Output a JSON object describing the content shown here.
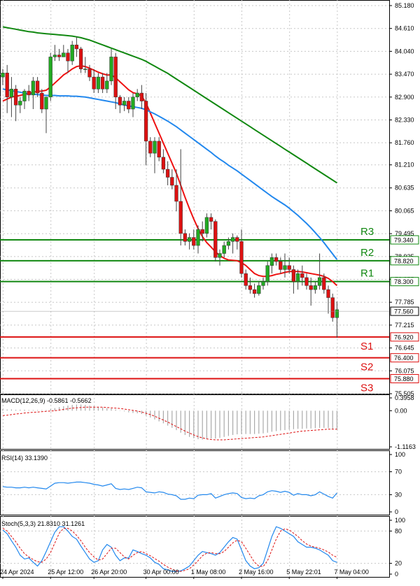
{
  "chart_data": [
    {
      "type": "candlestick",
      "panel": "price",
      "ylim": [
        75.505,
        85.18
      ],
      "price_ticks": [
        "85.180",
        "84.610",
        "84.040",
        "83.470",
        "82.900",
        "82.330",
        "81.760",
        "81.210",
        "80.635",
        "80.065",
        "79.495",
        "78.925",
        "78.355",
        "77.785",
        "77.215",
        "76.645",
        "76.075",
        "75.505"
      ],
      "current_price": {
        "value": 77.56,
        "label": "77.560"
      },
      "support_resistance": [
        {
          "name": "R3",
          "value": 79.34,
          "label": "79.340",
          "kind": "resistance"
        },
        {
          "name": "R2",
          "value": 78.82,
          "label": "78.820",
          "kind": "resistance"
        },
        {
          "name": "R1",
          "value": 78.3,
          "label": "78.300",
          "kind": "resistance"
        },
        {
          "name": "S1",
          "value": 76.92,
          "label": "76.920",
          "kind": "support"
        },
        {
          "name": "S2",
          "value": 76.4,
          "label": "76.400",
          "kind": "support"
        },
        {
          "name": "S3",
          "value": 75.88,
          "label": "75.880",
          "kind": "support"
        }
      ],
      "x_labels": [
        "24 Apr 2024",
        "25 Apr 12:00",
        "26 Apr 20:00",
        "30 Apr 00:00",
        "1 May 08:00",
        "2 May 16:00",
        "5 May 22:01",
        "7 May 04:00"
      ],
      "x_label_bars": [
        0,
        11,
        21,
        33,
        44,
        55,
        66,
        77
      ],
      "candles": [
        [
          83.4,
          83.6,
          83.2,
          83.5
        ],
        [
          83.5,
          83.7,
          82.5,
          82.9
        ],
        [
          82.9,
          83.4,
          82.4,
          83.1
        ],
        [
          83.1,
          83.2,
          82.3,
          82.7
        ],
        [
          82.7,
          82.9,
          82.5,
          82.8
        ],
        [
          82.8,
          83.1,
          82.6,
          83.05
        ],
        [
          83.05,
          83.2,
          82.8,
          82.95
        ],
        [
          82.95,
          83.4,
          82.6,
          83.3
        ],
        [
          83.3,
          83.4,
          82.9,
          83.0
        ],
        [
          83.0,
          83.1,
          82.5,
          82.6
        ],
        [
          82.6,
          82.9,
          82.0,
          82.9
        ],
        [
          82.9,
          84.0,
          82.8,
          83.9
        ],
        [
          83.9,
          84.2,
          83.8,
          83.95
        ],
        [
          83.95,
          84.1,
          83.8,
          83.9
        ],
        [
          83.9,
          84.2,
          83.9,
          84.0
        ],
        [
          84.0,
          84.1,
          83.5,
          83.8
        ],
        [
          83.8,
          84.3,
          83.7,
          84.2
        ],
        [
          84.2,
          84.4,
          83.9,
          84.1
        ],
        [
          84.1,
          84.15,
          83.5,
          83.6
        ],
        [
          83.6,
          83.9,
          83.5,
          83.6
        ],
        [
          83.6,
          83.7,
          83.3,
          83.4
        ],
        [
          83.4,
          83.6,
          83.0,
          83.1
        ],
        [
          83.1,
          83.5,
          83.0,
          83.4
        ],
        [
          83.4,
          83.5,
          83.0,
          83.1
        ],
        [
          83.1,
          83.5,
          83.0,
          83.3
        ],
        [
          83.3,
          84.1,
          83.2,
          83.9
        ],
        [
          83.9,
          84.0,
          82.6,
          82.9
        ],
        [
          82.9,
          82.95,
          82.5,
          82.7
        ],
        [
          82.7,
          82.9,
          82.55,
          82.8
        ],
        [
          82.8,
          82.9,
          82.5,
          82.6
        ],
        [
          82.6,
          83.0,
          82.4,
          82.9
        ],
        [
          82.9,
          83.1,
          82.8,
          83.0
        ],
        [
          83.0,
          83.2,
          82.6,
          82.8
        ],
        [
          82.8,
          83.0,
          81.2,
          81.8
        ],
        [
          81.8,
          81.9,
          81.4,
          81.5
        ],
        [
          81.5,
          81.9,
          81.0,
          81.8
        ],
        [
          81.8,
          81.9,
          81.3,
          81.4
        ],
        [
          81.4,
          81.6,
          81.0,
          81.1
        ],
        [
          81.1,
          81.3,
          80.7,
          80.9
        ],
        [
          80.9,
          81.1,
          80.6,
          80.7
        ],
        [
          80.7,
          81.1,
          80.05,
          80.3
        ],
        [
          80.3,
          81.6,
          79.2,
          79.5
        ],
        [
          79.5,
          79.6,
          79.2,
          79.3
        ],
        [
          79.3,
          79.5,
          79.1,
          79.4
        ],
        [
          79.4,
          79.6,
          79.1,
          79.2
        ],
        [
          79.2,
          79.7,
          79.0,
          79.6
        ],
        [
          79.6,
          79.8,
          79.3,
          79.5
        ],
        [
          79.5,
          80.0,
          79.4,
          79.9
        ],
        [
          79.9,
          80.0,
          79.6,
          79.8
        ],
        [
          79.8,
          79.85,
          78.8,
          78.9
        ],
        [
          78.9,
          79.1,
          78.7,
          79.0
        ],
        [
          79.0,
          79.3,
          78.9,
          79.2
        ],
        [
          79.2,
          79.4,
          79.1,
          79.3
        ],
        [
          79.3,
          79.5,
          79.0,
          79.4
        ],
        [
          79.4,
          79.45,
          79.1,
          79.3
        ],
        [
          79.3,
          79.6,
          78.4,
          78.5
        ],
        [
          78.5,
          78.6,
          78.1,
          78.2
        ],
        [
          78.2,
          78.4,
          78.0,
          78.1
        ],
        [
          78.1,
          78.25,
          77.9,
          78.0
        ],
        [
          78.0,
          78.3,
          77.95,
          78.2
        ],
        [
          78.2,
          78.4,
          78.1,
          78.3
        ],
        [
          78.3,
          78.8,
          78.2,
          78.7
        ],
        [
          78.7,
          79.0,
          78.5,
          78.9
        ],
        [
          78.9,
          79.0,
          78.7,
          78.8
        ],
        [
          78.8,
          78.9,
          78.5,
          78.6
        ],
        [
          78.6,
          79.0,
          78.4,
          78.7
        ],
        [
          78.7,
          78.9,
          78.5,
          78.6
        ],
        [
          78.6,
          78.7,
          78.0,
          78.3
        ],
        [
          78.3,
          78.6,
          78.1,
          78.5
        ],
        [
          78.5,
          78.7,
          78.2,
          78.4
        ],
        [
          78.4,
          78.5,
          78.1,
          78.2
        ],
        [
          78.2,
          78.4,
          77.7,
          78.1
        ],
        [
          78.1,
          78.3,
          78.0,
          78.2
        ],
        [
          78.2,
          79.0,
          78.1,
          78.4
        ],
        [
          78.4,
          78.5,
          78.0,
          78.1
        ],
        [
          78.1,
          78.2,
          77.5,
          77.9
        ],
        [
          77.9,
          78.0,
          77.3,
          77.4
        ],
        [
          77.4,
          77.8,
          76.9,
          77.6
        ]
      ],
      "series": [
        {
          "name": "",
          "color": "#ee1111",
          "values": [
            82.8,
            82.85,
            82.9,
            82.92,
            82.94,
            82.97,
            82.99,
            83.02,
            83.04,
            83.05,
            83.07,
            83.15,
            83.25,
            83.35,
            83.45,
            83.52,
            83.6,
            83.66,
            83.68,
            83.66,
            83.62,
            83.57,
            83.52,
            83.48,
            83.45,
            83.45,
            83.38,
            83.28,
            83.18,
            83.08,
            83.01,
            82.98,
            82.93,
            82.75,
            82.5,
            82.25,
            82.0,
            81.75,
            81.5,
            81.25,
            81.0,
            80.7,
            80.4,
            80.12,
            79.86,
            79.62,
            79.42,
            79.27,
            79.16,
            79.04,
            78.95,
            78.88,
            78.84,
            78.83,
            78.82,
            78.77,
            78.7,
            78.6,
            78.5,
            78.45,
            78.43,
            78.43,
            78.45,
            78.48,
            78.5,
            78.53,
            78.55,
            78.55,
            78.55,
            78.54,
            78.52,
            78.5,
            78.48,
            78.46,
            78.43,
            78.38,
            78.3,
            78.2
          ]
        },
        {
          "name": "",
          "color": "#2288ee",
          "values": [
            83.1,
            83.08,
            83.06,
            83.04,
            83.02,
            83.0,
            82.98,
            82.97,
            82.96,
            82.95,
            82.94,
            82.94,
            82.94,
            82.93,
            82.93,
            82.93,
            82.92,
            82.92,
            82.91,
            82.9,
            82.88,
            82.86,
            82.84,
            82.82,
            82.8,
            82.78,
            82.76,
            82.73,
            82.7,
            82.68,
            82.66,
            82.64,
            82.62,
            82.58,
            82.53,
            82.48,
            82.42,
            82.36,
            82.3,
            82.23,
            82.16,
            82.08,
            82.0,
            81.92,
            81.84,
            81.76,
            81.68,
            81.6,
            81.52,
            81.43,
            81.35,
            81.28,
            81.2,
            81.13,
            81.06,
            80.98,
            80.9,
            80.82,
            80.74,
            80.66,
            80.58,
            80.5,
            80.42,
            80.35,
            80.28,
            80.21,
            80.13,
            80.04,
            79.95,
            79.85,
            79.75,
            79.64,
            79.52,
            79.4,
            79.27,
            79.13,
            78.99,
            78.85
          ]
        },
        {
          "name": "",
          "color": "#118811",
          "values": [
            84.65,
            84.63,
            84.61,
            84.59,
            84.57,
            84.55,
            84.53,
            84.52,
            84.5,
            84.49,
            84.48,
            84.47,
            84.46,
            84.45,
            84.44,
            84.43,
            84.42,
            84.4,
            84.38,
            84.35,
            84.32,
            84.28,
            84.24,
            84.2,
            84.16,
            84.12,
            84.08,
            84.04,
            84.0,
            83.96,
            83.92,
            83.88,
            83.84,
            83.79,
            83.73,
            83.67,
            83.61,
            83.55,
            83.49,
            83.42,
            83.35,
            83.28,
            83.21,
            83.14,
            83.07,
            83.0,
            82.93,
            82.86,
            82.79,
            82.72,
            82.65,
            82.58,
            82.51,
            82.44,
            82.37,
            82.3,
            82.23,
            82.16,
            82.09,
            82.02,
            81.95,
            81.88,
            81.81,
            81.74,
            81.67,
            81.6,
            81.53,
            81.46,
            81.39,
            81.32,
            81.25,
            81.18,
            81.11,
            81.04,
            80.97,
            80.9,
            80.83,
            80.76
          ]
        }
      ]
    },
    {
      "type": "bar",
      "panel": "macd",
      "title": "MACD(12,26,9) -0.5861 -0.5662",
      "ylim": [
        -1.1163,
        0.3958
      ],
      "ticks": [
        "0.3958",
        "0.00",
        "-1.1163"
      ],
      "histogram": [
        0.05,
        0.04,
        0.04,
        0.03,
        0.03,
        0.03,
        0.02,
        0.02,
        0.02,
        0.02,
        0.02,
        0.05,
        0.08,
        0.11,
        0.14,
        0.16,
        0.18,
        0.19,
        0.19,
        0.18,
        0.16,
        0.14,
        0.12,
        0.1,
        0.08,
        0.07,
        0.04,
        0.01,
        -0.02,
        -0.05,
        -0.07,
        -0.08,
        -0.1,
        -0.15,
        -0.21,
        -0.27,
        -0.33,
        -0.39,
        -0.46,
        -0.53,
        -0.6,
        -0.68,
        -0.75,
        -0.81,
        -0.85,
        -0.88,
        -0.89,
        -0.88,
        -0.86,
        -0.86,
        -0.84,
        -0.81,
        -0.78,
        -0.75,
        -0.73,
        -0.72,
        -0.72,
        -0.72,
        -0.72,
        -0.71,
        -0.7,
        -0.68,
        -0.65,
        -0.63,
        -0.61,
        -0.6,
        -0.58,
        -0.57,
        -0.56,
        -0.56,
        -0.55,
        -0.55,
        -0.54,
        -0.53,
        -0.53,
        -0.54,
        -0.56,
        -0.59
      ],
      "signal": [
        -0.15,
        -0.14,
        -0.12,
        -0.1,
        -0.09,
        -0.07,
        -0.06,
        -0.05,
        -0.04,
        -0.03,
        -0.02,
        -0.01,
        0.0,
        0.02,
        0.04,
        0.06,
        0.08,
        0.09,
        0.1,
        0.11,
        0.11,
        0.11,
        0.11,
        0.11,
        0.1,
        0.09,
        0.08,
        0.07,
        0.05,
        0.03,
        0.01,
        -0.01,
        -0.04,
        -0.08,
        -0.12,
        -0.17,
        -0.23,
        -0.29,
        -0.35,
        -0.42,
        -0.49,
        -0.56,
        -0.63,
        -0.69,
        -0.75,
        -0.8,
        -0.84,
        -0.87,
        -0.89,
        -0.9,
        -0.9,
        -0.9,
        -0.89,
        -0.88,
        -0.87,
        -0.86,
        -0.85,
        -0.84,
        -0.83,
        -0.82,
        -0.81,
        -0.79,
        -0.77,
        -0.75,
        -0.73,
        -0.71,
        -0.69,
        -0.67,
        -0.65,
        -0.63,
        -0.62,
        -0.61,
        -0.6,
        -0.59,
        -0.58,
        -0.57,
        -0.57,
        -0.57
      ]
    },
    {
      "type": "line",
      "panel": "rsi",
      "title": "RSI(14) 33.1390",
      "ylim": [
        0,
        100
      ],
      "ticks": [
        "100",
        "70",
        "30",
        "0"
      ],
      "values": [
        44,
        43,
        43,
        42,
        42,
        43,
        42,
        43,
        42,
        41,
        40,
        45,
        50,
        51,
        51,
        50,
        51,
        52,
        52,
        51,
        50,
        48,
        47,
        45,
        47,
        49,
        41,
        39,
        40,
        39,
        41,
        43,
        42,
        35,
        34,
        33,
        35,
        34,
        31,
        30,
        28,
        22,
        22,
        24,
        23,
        29,
        30,
        30,
        32,
        24,
        27,
        30,
        32,
        33,
        32,
        25,
        23,
        24,
        23,
        28,
        30,
        35,
        37,
        36,
        34,
        36,
        34,
        29,
        32,
        30,
        30,
        28,
        30,
        35,
        31,
        27,
        24,
        33
      ]
    },
    {
      "type": "line",
      "panel": "stoch",
      "title": "Stoch(5,3,3) 21.8310 31.1261",
      "ylim": [
        0,
        100
      ],
      "ticks": [
        "100",
        "80",
        "20",
        "0"
      ],
      "k": [
        82,
        75,
        62,
        50,
        35,
        28,
        30,
        22,
        15,
        25,
        42,
        60,
        78,
        88,
        88,
        80,
        70,
        65,
        52,
        40,
        28,
        22,
        25,
        45,
        55,
        50,
        35,
        25,
        30,
        30,
        45,
        42,
        38,
        35,
        30,
        22,
        18,
        10,
        8,
        5,
        5,
        6,
        10,
        15,
        25,
        35,
        42,
        40,
        38,
        35,
        40,
        50,
        60,
        68,
        65,
        45,
        25,
        15,
        10,
        12,
        20,
        45,
        70,
        88,
        85,
        80,
        75,
        70,
        60,
        55,
        50,
        50,
        48,
        45,
        40,
        35,
        25,
        21.83
      ],
      "d": [
        85,
        80,
        70,
        60,
        48,
        38,
        32,
        27,
        23,
        22,
        28,
        40,
        58,
        76,
        85,
        85,
        80,
        72,
        62,
        50,
        40,
        32,
        26,
        28,
        38,
        48,
        48,
        40,
        32,
        28,
        35,
        40,
        42,
        38,
        34,
        29,
        24,
        18,
        13,
        9,
        6,
        5,
        7,
        10,
        17,
        25,
        34,
        39,
        40,
        38,
        38,
        42,
        50,
        58,
        63,
        60,
        48,
        35,
        22,
        15,
        14,
        25,
        45,
        65,
        80,
        84,
        82,
        76,
        70,
        62,
        56,
        52,
        50,
        48,
        45,
        41,
        35,
        31.13
      ]
    }
  ],
  "colors": {
    "bull_candle": "#22aa22",
    "bear_candle": "#dd1111",
    "support_line": "#dd1111",
    "resistance_line": "#118811",
    "grid": "#c8c8c8",
    "indicator_line": "#2288ee",
    "signal_line": "#dd1111",
    "histogram_bar": "#aaaaaa"
  }
}
